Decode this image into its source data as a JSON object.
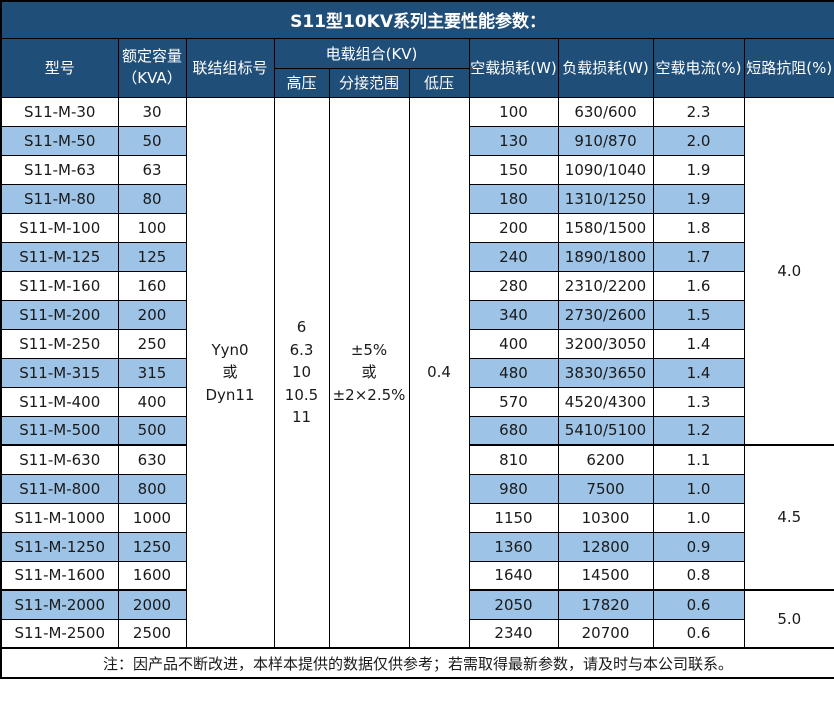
{
  "colors": {
    "header_bg": "#1F4E79",
    "header_text": "#FFFFFF",
    "stripe_bg": "#9DC3E6",
    "border": "#000000",
    "body_text": "#1A1A1A"
  },
  "chart_data": {
    "type": "table",
    "title": "S11型10KV系列主要性能参数：",
    "header": {
      "model": "型号",
      "capacity": "额定容量\n（KVA）",
      "connection": "联结组标号",
      "voltage_combo": "电载组合(KV)",
      "hv": "高压",
      "tap_range": "分接范围",
      "lv": "低压",
      "noload_loss": "空载损耗(W)",
      "load_loss": "负载损耗(W)",
      "noload_current": "空载电流(%)",
      "impedance": "短路抗阻(%)"
    },
    "merged": {
      "connection": "Yyn0\n或\nDyn11",
      "hv": "6\n6.3\n10\n10.5\n11",
      "tap_range": "±5%\n或\n±2×2.5%",
      "lv": "0.4"
    },
    "impedance_groups": [
      {
        "value": "4.0",
        "span": 12
      },
      {
        "value": "4.5",
        "span": 5
      },
      {
        "value": "5.0",
        "span": 2
      }
    ],
    "rows": [
      {
        "model": "S11-M-30",
        "capacity": "30",
        "noload_loss": "100",
        "load_loss": "630/600",
        "noload_current": "2.3"
      },
      {
        "model": "S11-M-50",
        "capacity": "50",
        "noload_loss": "130",
        "load_loss": "910/870",
        "noload_current": "2.0"
      },
      {
        "model": "S11-M-63",
        "capacity": "63",
        "noload_loss": "150",
        "load_loss": "1090/1040",
        "noload_current": "1.9"
      },
      {
        "model": "S11-M-80",
        "capacity": "80",
        "noload_loss": "180",
        "load_loss": "1310/1250",
        "noload_current": "1.9"
      },
      {
        "model": "S11-M-100",
        "capacity": "100",
        "noload_loss": "200",
        "load_loss": "1580/1500",
        "noload_current": "1.8"
      },
      {
        "model": "S11-M-125",
        "capacity": "125",
        "noload_loss": "240",
        "load_loss": "1890/1800",
        "noload_current": "1.7"
      },
      {
        "model": "S11-M-160",
        "capacity": "160",
        "noload_loss": "280",
        "load_loss": "2310/2200",
        "noload_current": "1.6"
      },
      {
        "model": "S11-M-200",
        "capacity": "200",
        "noload_loss": "340",
        "load_loss": "2730/2600",
        "noload_current": "1.5"
      },
      {
        "model": "S11-M-250",
        "capacity": "250",
        "noload_loss": "400",
        "load_loss": "3200/3050",
        "noload_current": "1.4"
      },
      {
        "model": "S11-M-315",
        "capacity": "315",
        "noload_loss": "480",
        "load_loss": "3830/3650",
        "noload_current": "1.4"
      },
      {
        "model": "S11-M-400",
        "capacity": "400",
        "noload_loss": "570",
        "load_loss": "4520/4300",
        "noload_current": "1.3"
      },
      {
        "model": "S11-M-500",
        "capacity": "500",
        "noload_loss": "680",
        "load_loss": "5410/5100",
        "noload_current": "1.2"
      },
      {
        "model": "S11-M-630",
        "capacity": "630",
        "noload_loss": "810",
        "load_loss": "6200",
        "noload_current": "1.1"
      },
      {
        "model": "S11-M-800",
        "capacity": "800",
        "noload_loss": "980",
        "load_loss": "7500",
        "noload_current": "1.0"
      },
      {
        "model": "S11-M-1000",
        "capacity": "1000",
        "noload_loss": "1150",
        "load_loss": "10300",
        "noload_current": "1.0"
      },
      {
        "model": "S11-M-1250",
        "capacity": "1250",
        "noload_loss": "1360",
        "load_loss": "12800",
        "noload_current": "0.9"
      },
      {
        "model": "S11-M-1600",
        "capacity": "1600",
        "noload_loss": "1640",
        "load_loss": "14500",
        "noload_current": "0.8"
      },
      {
        "model": "S11-M-2000",
        "capacity": "2000",
        "noload_loss": "2050",
        "load_loss": "17820",
        "noload_current": "0.6"
      },
      {
        "model": "S11-M-2500",
        "capacity": "2500",
        "noload_loss": "2340",
        "load_loss": "20700",
        "noload_current": "0.6"
      }
    ],
    "note": "注：因产品不断改进，本样本提供的数据仅供参考；若需取得最新参数，请及时与本公司联系。"
  }
}
